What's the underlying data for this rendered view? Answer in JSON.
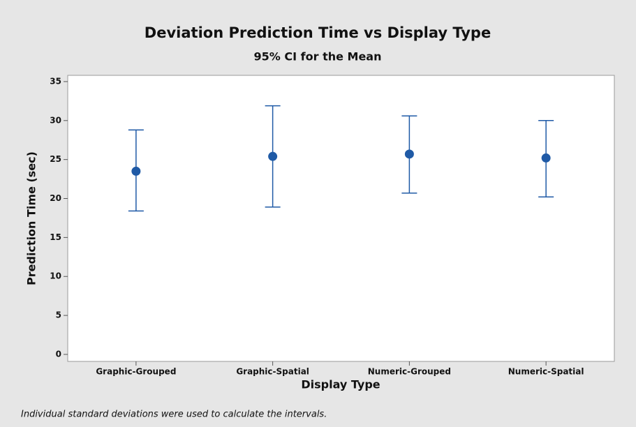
{
  "chart_data": {
    "type": "interval",
    "title": "Deviation Prediction Time vs Display Type",
    "subtitle": "95% CI for the Mean",
    "x_label": "Display Type",
    "y_label": "Prediction Time (sec)",
    "footnote": "Individual standard deviations were used to calculate the intervals.",
    "categories": [
      "Graphic-Grouped",
      "Graphic-Spatial",
      "Numeric-Grouped",
      "Numeric-Spatial"
    ],
    "values": [
      23.5,
      25.4,
      25.7,
      25.2
    ],
    "lower": [
      18.4,
      18.9,
      20.7,
      20.2
    ],
    "upper": [
      28.8,
      31.9,
      30.6,
      30.0
    ],
    "color": "#1f5aa6",
    "ylim": [
      -0.9,
      35.8
    ],
    "yticks": [
      0,
      5,
      10,
      15,
      20,
      25,
      30,
      35
    ]
  }
}
